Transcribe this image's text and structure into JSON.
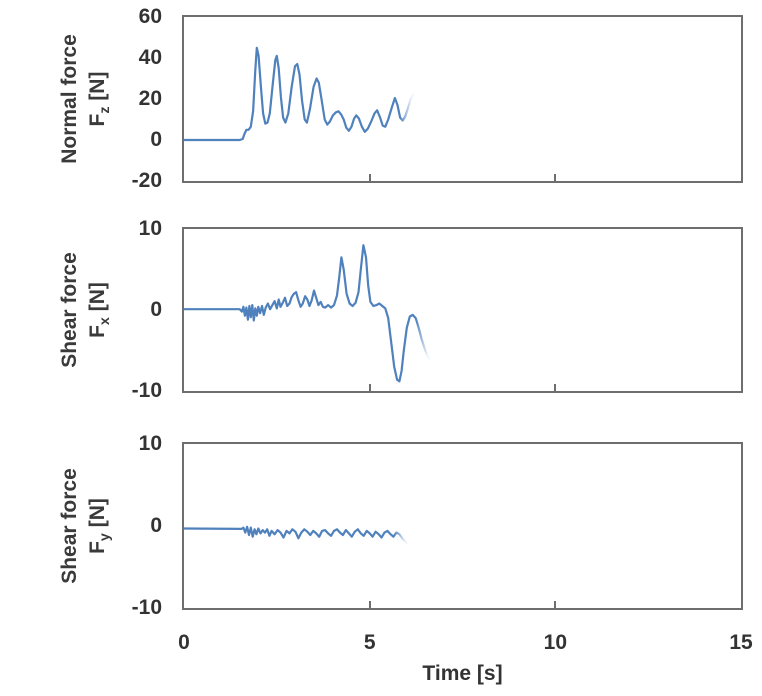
{
  "figure": {
    "xlabel": "Time [s]",
    "xlim": [
      0,
      15
    ],
    "x_ticks": [
      0,
      5,
      10,
      15
    ],
    "line_color": "#4f81bd",
    "border_color": "#6e6e6e",
    "text_color": "#333333"
  },
  "chart_data": [
    {
      "type": "line",
      "name": "normal-force-fz",
      "ylabel_line1": "Normal force",
      "ylabel_symbol": "F",
      "ylabel_subscript": "z",
      "ylabel_unit": " [N]",
      "ylim": [
        -20,
        60
      ],
      "yticks": [
        60,
        40,
        20,
        0,
        -20
      ],
      "t": [
        0,
        1.5,
        1.58,
        1.63,
        1.68,
        1.74,
        1.8,
        1.86,
        1.92,
        1.96,
        2.01,
        2.07,
        2.13,
        2.19,
        2.25,
        2.31,
        2.39,
        2.46,
        2.5,
        2.55,
        2.61,
        2.67,
        2.73,
        2.81,
        2.9,
        2.99,
        3.05,
        3.11,
        3.18,
        3.25,
        3.31,
        3.39,
        3.49,
        3.57,
        3.63,
        3.71,
        3.79,
        3.86,
        3.93,
        4.01,
        4.09,
        4.16,
        4.23,
        4.3,
        4.37,
        4.44,
        4.51,
        4.58,
        4.64,
        4.71,
        4.79,
        4.87,
        4.95,
        5.04,
        5.13,
        5.2,
        5.28,
        5.35,
        5.42,
        5.5,
        5.6,
        5.68,
        5.75,
        5.82,
        5.89,
        5.96,
        6.04,
        6.11,
        6.17
      ],
      "v": [
        0,
        0,
        0.5,
        3,
        5,
        5,
        6.5,
        14,
        34,
        45,
        41,
        26,
        13,
        8,
        8.5,
        13,
        27,
        39,
        41,
        35,
        21,
        11,
        8.5,
        13,
        26,
        36,
        37,
        32,
        19,
        10,
        8.5,
        15,
        26,
        30,
        28,
        19,
        10,
        7.5,
        9,
        12,
        13.5,
        14,
        12.5,
        10,
        6,
        4.5,
        6.5,
        10.5,
        12,
        10.5,
        6.5,
        4,
        5.5,
        9,
        13,
        14.5,
        11,
        7,
        6.5,
        10,
        16,
        20.5,
        17,
        11,
        9.5,
        11.5,
        16,
        20,
        22
      ]
    },
    {
      "type": "line",
      "name": "shear-force-fx",
      "ylabel_line1": "Shear force",
      "ylabel_symbol": "F",
      "ylabel_subscript": "x",
      "ylabel_unit": " [N]",
      "ylim": [
        -10,
        10
      ],
      "yticks": [
        10,
        0,
        -10
      ],
      "t": [
        0,
        1.5,
        1.56,
        1.6,
        1.64,
        1.68,
        1.72,
        1.76,
        1.8,
        1.84,
        1.88,
        1.92,
        1.96,
        2.0,
        2.05,
        2.1,
        2.15,
        2.2,
        2.26,
        2.32,
        2.38,
        2.44,
        2.5,
        2.55,
        2.6,
        2.66,
        2.72,
        2.78,
        2.84,
        2.9,
        2.96,
        3.02,
        3.08,
        3.14,
        3.2,
        3.26,
        3.32,
        3.38,
        3.44,
        3.5,
        3.56,
        3.62,
        3.68,
        3.74,
        3.8,
        3.88,
        3.96,
        4.04,
        4.12,
        4.18,
        4.24,
        4.3,
        4.38,
        4.46,
        4.54,
        4.62,
        4.7,
        4.76,
        4.83,
        4.9,
        4.96,
        5.02,
        5.1,
        5.18,
        5.26,
        5.34,
        5.42,
        5.5,
        5.58,
        5.66,
        5.74,
        5.8,
        5.86,
        5.92,
        6.0,
        6.08,
        6.16,
        6.24,
        6.32,
        6.4,
        6.5,
        6.6
      ],
      "v": [
        0.1,
        0.1,
        -0.2,
        0.4,
        -0.7,
        0.3,
        -1.2,
        0.5,
        -0.9,
        0.6,
        -1.3,
        0.2,
        -0.7,
        0.4,
        -0.4,
        0.5,
        -0.6,
        0.3,
        0.8,
        0.1,
        0.6,
        1.1,
        0.2,
        1.3,
        0.4,
        0.9,
        1.5,
        0.5,
        0.8,
        1.6,
        2.0,
        2.2,
        1.2,
        0.4,
        0.8,
        1.7,
        1.3,
        0.5,
        1.2,
        2.4,
        1.5,
        0.6,
        1.0,
        0.4,
        0.3,
        0.6,
        0.3,
        0.6,
        1.8,
        4.0,
        6.5,
        5.0,
        2.0,
        0.8,
        0.5,
        0.9,
        2.2,
        5.0,
        8.0,
        6.5,
        3.0,
        1.0,
        0.5,
        0.6,
        0.8,
        0.5,
        0.2,
        -1.0,
        -4.0,
        -7.0,
        -8.6,
        -8.8,
        -7.5,
        -5.0,
        -2.2,
        -0.8,
        -0.6,
        -1.0,
        -2.2,
        -3.6,
        -5.0,
        -6.0
      ]
    },
    {
      "type": "line",
      "name": "shear-force-fy",
      "ylabel_line1": "Shear force",
      "ylabel_symbol": "F",
      "ylabel_subscript": "y",
      "ylabel_unit": " [N]",
      "ylim": [
        -10,
        10
      ],
      "yticks": [
        10,
        0,
        -10
      ],
      "t": [
        0,
        1.55,
        1.6,
        1.65,
        1.7,
        1.75,
        1.8,
        1.85,
        1.9,
        1.95,
        2.0,
        2.06,
        2.12,
        2.18,
        2.24,
        2.3,
        2.36,
        2.44,
        2.52,
        2.6,
        2.68,
        2.76,
        2.84,
        2.92,
        3.0,
        3.08,
        3.16,
        3.24,
        3.32,
        3.4,
        3.48,
        3.56,
        3.64,
        3.72,
        3.8,
        3.88,
        3.96,
        4.04,
        4.12,
        4.2,
        4.28,
        4.36,
        4.44,
        4.52,
        4.6,
        4.68,
        4.76,
        4.84,
        4.92,
        5.0,
        5.08,
        5.16,
        5.24,
        5.32,
        5.4,
        5.48,
        5.56,
        5.64,
        5.72,
        5.8,
        5.88,
        5.95,
        6.0
      ],
      "v": [
        -0.3,
        -0.35,
        -0.2,
        -0.8,
        -0.1,
        -1.1,
        -0.2,
        -1.3,
        -0.4,
        -1.0,
        -0.3,
        -0.9,
        -0.5,
        -0.8,
        -0.4,
        -1.2,
        -0.6,
        -1.0,
        -0.5,
        -0.8,
        -1.4,
        -0.6,
        -0.9,
        -0.4,
        -0.7,
        -1.5,
        -0.8,
        -0.4,
        -0.7,
        -1.1,
        -0.6,
        -0.9,
        -1.3,
        -0.6,
        -0.5,
        -0.9,
        -1.2,
        -0.6,
        -0.4,
        -0.8,
        -1.1,
        -0.5,
        -0.9,
        -1.3,
        -0.7,
        -0.4,
        -0.9,
        -1.2,
        -0.6,
        -0.9,
        -1.3,
        -0.7,
        -1.0,
        -1.4,
        -0.8,
        -0.6,
        -1.0,
        -1.3,
        -0.8,
        -1.0,
        -1.5,
        -1.8,
        -2.1
      ]
    }
  ]
}
